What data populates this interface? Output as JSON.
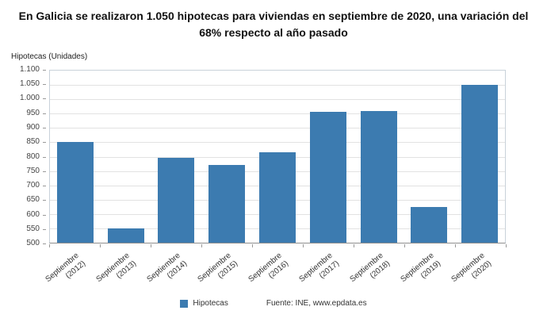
{
  "source": "Fuente: INE, www.epdata.es",
  "chart_data": {
    "type": "bar",
    "title": "En Galicia se realizaron 1.050 hipotecas para viviendas en septiembre de 2020, una variación del 68% respecto al año pasado",
    "categories": [
      "Septiembre (2012)",
      "Septiembre (2013)",
      "Septiembre (2014)",
      "Septiembre (2015)",
      "Septiembre (2016)",
      "Septiembre (2017)",
      "Septiembre (2018)",
      "Septiembre (2019)",
      "Septiembre (2020)"
    ],
    "values": [
      850,
      550,
      795,
      770,
      815,
      955,
      960,
      625,
      1050
    ],
    "xlabel": "",
    "ylabel": "Hipotecas (Unidades)",
    "ylim": [
      500,
      1100
    ],
    "ytick_step": 50,
    "grid": true,
    "legend": [
      "Hipotecas"
    ],
    "legend_position": "bottom",
    "bar_color": "#3c7bb0"
  }
}
